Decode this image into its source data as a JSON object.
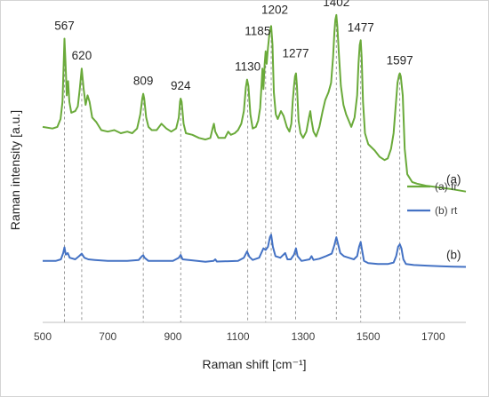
{
  "chart_data": {
    "type": "line",
    "xlabel": "Raman shift [cm⁻¹]",
    "ylabel": "Raman intensity [a.u.]",
    "xlim": [
      500,
      1800
    ],
    "ylim": [
      0,
      100
    ],
    "x_ticks": [
      500,
      700,
      900,
      1100,
      1300,
      1500,
      1700
    ],
    "x_tick_labels": [
      "500",
      "700",
      "900",
      "1100",
      "1300",
      "1500",
      "1700"
    ],
    "y_tick_labels_shown": false,
    "grid": false,
    "legend_position": "right",
    "series": [
      {
        "name": "(a) fr",
        "label": "(a)",
        "color": "#6aaa3a",
        "points": [
          [
            500,
            62.0
          ],
          [
            530,
            61.5
          ],
          [
            545,
            62.0
          ],
          [
            555,
            64.5
          ],
          [
            561,
            70.0
          ],
          [
            564,
            80.0
          ],
          [
            567,
            90.0
          ],
          [
            570,
            83.0
          ],
          [
            574,
            72.0
          ],
          [
            578,
            76.5
          ],
          [
            582,
            70.0
          ],
          [
            588,
            66.5
          ],
          [
            600,
            67.0
          ],
          [
            608,
            68.5
          ],
          [
            614,
            74.0
          ],
          [
            620,
            80.5
          ],
          [
            626,
            74.0
          ],
          [
            632,
            69.0
          ],
          [
            638,
            72.0
          ],
          [
            644,
            70.0
          ],
          [
            652,
            65.0
          ],
          [
            665,
            63.5
          ],
          [
            680,
            61.0
          ],
          [
            700,
            60.5
          ],
          [
            720,
            61.0
          ],
          [
            740,
            60.0
          ],
          [
            760,
            60.5
          ],
          [
            775,
            60.0
          ],
          [
            790,
            61.5
          ],
          [
            800,
            66.0
          ],
          [
            806,
            71.0
          ],
          [
            809,
            72.5
          ],
          [
            812,
            71.0
          ],
          [
            818,
            65.0
          ],
          [
            825,
            62.0
          ],
          [
            835,
            61.0
          ],
          [
            850,
            61.0
          ],
          [
            865,
            63.0
          ],
          [
            880,
            61.5
          ],
          [
            895,
            60.5
          ],
          [
            910,
            61.5
          ],
          [
            918,
            65.0
          ],
          [
            922,
            70.0
          ],
          [
            924,
            71.0
          ],
          [
            927,
            70.0
          ],
          [
            933,
            63.0
          ],
          [
            940,
            60.0
          ],
          [
            960,
            59.5
          ],
          [
            980,
            58.5
          ],
          [
            1000,
            58.0
          ],
          [
            1015,
            58.5
          ],
          [
            1022,
            61.5
          ],
          [
            1026,
            63.0
          ],
          [
            1030,
            60.5
          ],
          [
            1040,
            58.5
          ],
          [
            1060,
            58.5
          ],
          [
            1070,
            60.5
          ],
          [
            1078,
            59.5
          ],
          [
            1090,
            60.0
          ],
          [
            1100,
            61.0
          ],
          [
            1110,
            63.0
          ],
          [
            1118,
            67.0
          ],
          [
            1124,
            74.5
          ],
          [
            1128,
            77.0
          ],
          [
            1132,
            75.0
          ],
          [
            1138,
            66.0
          ],
          [
            1145,
            61.5
          ],
          [
            1155,
            62.0
          ],
          [
            1162,
            64.0
          ],
          [
            1168,
            68.0
          ],
          [
            1172,
            75.0
          ],
          [
            1175,
            80.5
          ],
          [
            1178,
            74.0
          ],
          [
            1182,
            82.0
          ],
          [
            1185,
            86.0
          ],
          [
            1188,
            82.0
          ],
          [
            1192,
            87.0
          ],
          [
            1197,
            92.0
          ],
          [
            1202,
            94.0
          ],
          [
            1206,
            88.0
          ],
          [
            1210,
            73.0
          ],
          [
            1216,
            66.0
          ],
          [
            1222,
            64.5
          ],
          [
            1232,
            67.0
          ],
          [
            1240,
            65.5
          ],
          [
            1250,
            62.0
          ],
          [
            1258,
            60.5
          ],
          [
            1264,
            63.0
          ],
          [
            1268,
            70.0
          ],
          [
            1272,
            75.0
          ],
          [
            1275,
            78.0
          ],
          [
            1278,
            79.0
          ],
          [
            1281,
            75.0
          ],
          [
            1286,
            64.0
          ],
          [
            1292,
            60.0
          ],
          [
            1300,
            58.5
          ],
          [
            1310,
            60.5
          ],
          [
            1318,
            65.0
          ],
          [
            1322,
            67.0
          ],
          [
            1326,
            64.0
          ],
          [
            1332,
            60.5
          ],
          [
            1340,
            59.0
          ],
          [
            1350,
            62.0
          ],
          [
            1360,
            67.0
          ],
          [
            1368,
            70.5
          ],
          [
            1378,
            73.0
          ],
          [
            1386,
            76.0
          ],
          [
            1392,
            84.0
          ],
          [
            1396,
            92.0
          ],
          [
            1399,
            96.0
          ],
          [
            1402,
            97.5
          ],
          [
            1405,
            94.0
          ],
          [
            1410,
            85.0
          ],
          [
            1416,
            75.0
          ],
          [
            1424,
            69.0
          ],
          [
            1432,
            66.0
          ],
          [
            1440,
            64.0
          ],
          [
            1448,
            62.0
          ],
          [
            1458,
            65.0
          ],
          [
            1466,
            72.0
          ],
          [
            1470,
            82.0
          ],
          [
            1474,
            88.0
          ],
          [
            1477,
            89.5
          ],
          [
            1480,
            84.0
          ],
          [
            1484,
            70.0
          ],
          [
            1490,
            60.0
          ],
          [
            1500,
            56.5
          ],
          [
            1520,
            54.5
          ],
          [
            1535,
            52.5
          ],
          [
            1550,
            51.5
          ],
          [
            1560,
            52.0
          ],
          [
            1570,
            55.0
          ],
          [
            1578,
            60.0
          ],
          [
            1584,
            68.0
          ],
          [
            1590,
            76.0
          ],
          [
            1595,
            78.5
          ],
          [
            1597,
            79.0
          ],
          [
            1600,
            78.0
          ],
          [
            1606,
            72.0
          ],
          [
            1612,
            55.0
          ],
          [
            1620,
            47.0
          ],
          [
            1635,
            44.5
          ],
          [
            1650,
            44.0
          ],
          [
            1680,
            43.3
          ],
          [
            1720,
            42.8
          ],
          [
            1760,
            42.2
          ],
          [
            1800,
            41.5
          ]
        ]
      },
      {
        "name": "(b) rt",
        "label": "(b)",
        "color": "#4472c4",
        "points": [
          [
            500,
            19.5
          ],
          [
            540,
            19.5
          ],
          [
            556,
            20.0
          ],
          [
            563,
            22.0
          ],
          [
            567,
            23.8
          ],
          [
            571,
            21.5
          ],
          [
            577,
            22.0
          ],
          [
            583,
            20.5
          ],
          [
            600,
            20.0
          ],
          [
            612,
            21.0
          ],
          [
            620,
            21.8
          ],
          [
            628,
            20.5
          ],
          [
            640,
            20.0
          ],
          [
            660,
            19.8
          ],
          [
            700,
            19.5
          ],
          [
            760,
            19.5
          ],
          [
            795,
            19.8
          ],
          [
            805,
            21.0
          ],
          [
            809,
            21.3
          ],
          [
            813,
            20.5
          ],
          [
            825,
            19.5
          ],
          [
            900,
            19.5
          ],
          [
            918,
            20.5
          ],
          [
            924,
            21.4
          ],
          [
            930,
            20.0
          ],
          [
            1000,
            19.2
          ],
          [
            1025,
            19.5
          ],
          [
            1030,
            20.0
          ],
          [
            1035,
            19.3
          ],
          [
            1100,
            19.5
          ],
          [
            1118,
            20.5
          ],
          [
            1128,
            22.5
          ],
          [
            1135,
            20.8
          ],
          [
            1145,
            19.8
          ],
          [
            1165,
            20.5
          ],
          [
            1178,
            23.5
          ],
          [
            1185,
            23.0
          ],
          [
            1192,
            24.0
          ],
          [
            1198,
            27.0
          ],
          [
            1202,
            27.8
          ],
          [
            1207,
            24.0
          ],
          [
            1215,
            21.0
          ],
          [
            1230,
            20.5
          ],
          [
            1245,
            22.0
          ],
          [
            1252,
            20.0
          ],
          [
            1262,
            20.0
          ],
          [
            1272,
            21.5
          ],
          [
            1278,
            23.5
          ],
          [
            1283,
            21.0
          ],
          [
            1295,
            19.5
          ],
          [
            1320,
            20.0
          ],
          [
            1326,
            21.0
          ],
          [
            1332,
            19.8
          ],
          [
            1350,
            20.2
          ],
          [
            1370,
            21.0
          ],
          [
            1388,
            21.8
          ],
          [
            1396,
            24.5
          ],
          [
            1402,
            27.0
          ],
          [
            1407,
            25.0
          ],
          [
            1414,
            22.0
          ],
          [
            1425,
            21.0
          ],
          [
            1440,
            20.5
          ],
          [
            1456,
            20.0
          ],
          [
            1466,
            21.0
          ],
          [
            1472,
            24.0
          ],
          [
            1477,
            25.5
          ],
          [
            1481,
            23.0
          ],
          [
            1487,
            19.5
          ],
          [
            1500,
            18.8
          ],
          [
            1530,
            18.5
          ],
          [
            1560,
            18.5
          ],
          [
            1578,
            19.0
          ],
          [
            1586,
            21.0
          ],
          [
            1592,
            24.0
          ],
          [
            1597,
            24.8
          ],
          [
            1602,
            23.5
          ],
          [
            1608,
            20.0
          ],
          [
            1616,
            18.5
          ],
          [
            1640,
            18.2
          ],
          [
            1680,
            18.0
          ],
          [
            1720,
            17.8
          ],
          [
            1760,
            17.7
          ],
          [
            1800,
            17.6
          ]
        ]
      }
    ],
    "peaks": [
      {
        "label": "567",
        "x": 567,
        "y": 90.0
      },
      {
        "label": "620",
        "x": 620,
        "y": 80.5
      },
      {
        "label": "809",
        "x": 809,
        "y": 72.5
      },
      {
        "label": "924",
        "x": 924,
        "y": 71.0
      },
      {
        "label": "1130",
        "x": 1130,
        "y": 77.0
      },
      {
        "label": "1185",
        "x": 1185,
        "y": 86.0
      },
      {
        "label": "1202",
        "x": 1202,
        "y": 94.0
      },
      {
        "label": "1277",
        "x": 1277,
        "y": 79.0
      },
      {
        "label": "1402",
        "x": 1402,
        "y": 97.5
      },
      {
        "label": "1477",
        "x": 1477,
        "y": 89.5
      },
      {
        "label": "1597",
        "x": 1597,
        "y": 79.0
      }
    ],
    "dashed_guides_x": [
      567,
      620,
      809,
      924,
      1130,
      1185,
      1202,
      1277,
      1402,
      1477,
      1597
    ]
  }
}
